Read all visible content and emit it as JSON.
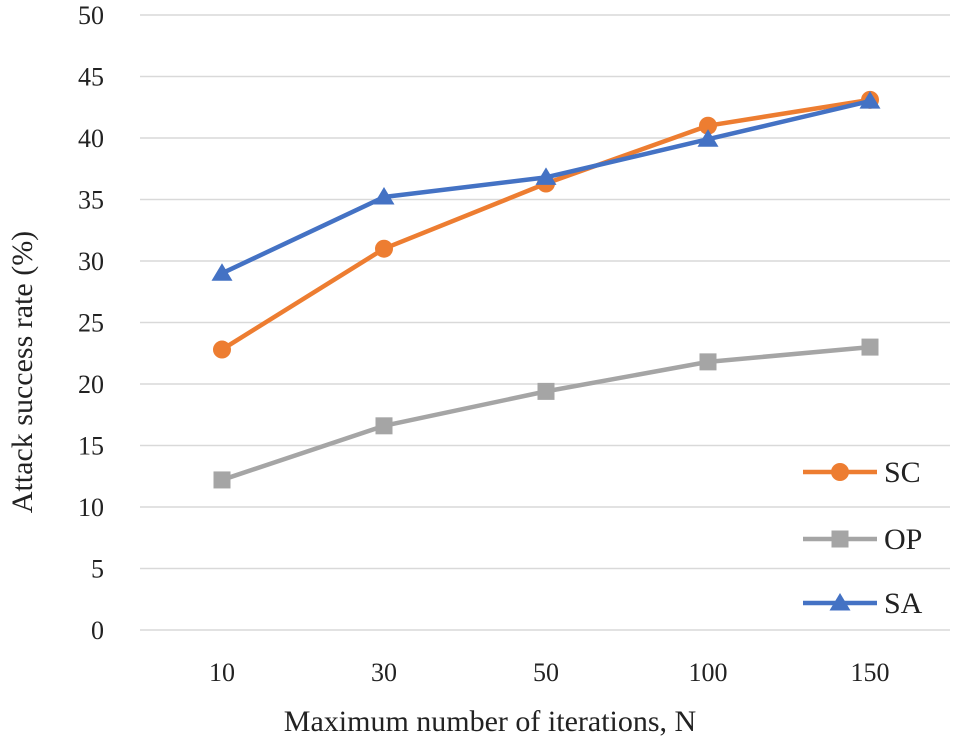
{
  "chart_data": {
    "type": "line",
    "title": "",
    "xlabel": "Maximum number of iterations, N",
    "ylabel": "Attack success rate (%)",
    "categories": [
      "10",
      "30",
      "50",
      "100",
      "150"
    ],
    "ylim": [
      0,
      50
    ],
    "yticks": [
      0,
      5,
      10,
      15,
      20,
      25,
      30,
      35,
      40,
      45,
      50
    ],
    "grid": "horizontal",
    "legend_position": "bottom-right",
    "series": [
      {
        "name": "SC",
        "values": [
          22.8,
          31.0,
          36.3,
          41.0,
          43.1
        ],
        "color": "#ED7D31",
        "marker": "circle"
      },
      {
        "name": "OP",
        "values": [
          12.2,
          16.6,
          19.4,
          21.8,
          23.0
        ],
        "color": "#A5A5A5",
        "marker": "square"
      },
      {
        "name": "SA",
        "values": [
          29.0,
          35.2,
          36.8,
          39.9,
          43.0
        ],
        "color": "#4472C4",
        "marker": "triangle"
      }
    ]
  }
}
